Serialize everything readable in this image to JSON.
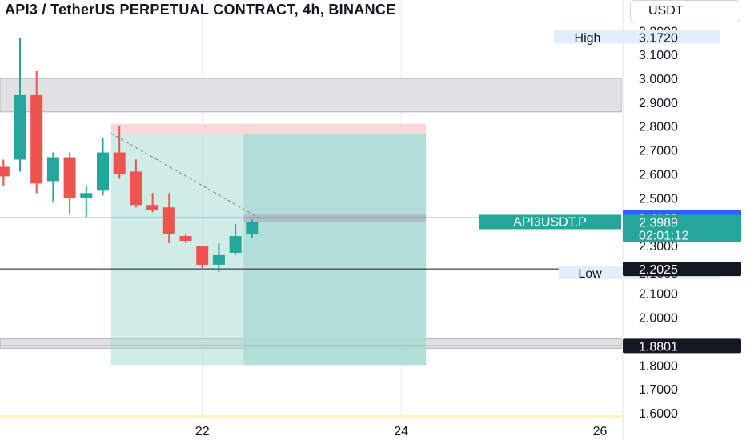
{
  "header": {
    "title": "API3 / TetherUS PERPETUAL CONTRACT, 4h, BINANCE",
    "currency": "USDT"
  },
  "colors": {
    "up": "#26a69a",
    "down": "#ef5350",
    "profit_zone": "#a8dcd3",
    "loss_zone": "#fad0d0",
    "zone_gray": "#e1e1e3",
    "price_tag_green": "#26a69a",
    "price_tag_blue": "#2962ff",
    "price_tag_dark": "#131722"
  },
  "chart_data": {
    "type": "candlestick",
    "symbol": "API3USDT.P",
    "timeframe": "4h",
    "y_axis": {
      "min": 1.58,
      "max": 3.23,
      "ticks": [
        "1.6000",
        "1.7000",
        "1.8000",
        "2.0000",
        "2.1000",
        "2.3000",
        "2.5000",
        "2.6000",
        "2.7000",
        "2.8000",
        "2.9000",
        "3.0000",
        "3.1000",
        "3.2000"
      ]
    },
    "x_axis": {
      "ticks": [
        {
          "label": "22",
          "index": 11
        },
        {
          "label": "24",
          "index": 23
        },
        {
          "label": "26",
          "index": 35
        }
      ]
    },
    "candles": [
      {
        "i": -1,
        "o": 2.63,
        "h": 2.66,
        "l": 2.55,
        "c": 2.59
      },
      {
        "i": 0,
        "o": 2.66,
        "h": 3.17,
        "l": 2.61,
        "c": 2.93
      },
      {
        "i": 1,
        "o": 2.93,
        "h": 3.03,
        "l": 2.52,
        "c": 2.56
      },
      {
        "i": 2,
        "o": 2.57,
        "h": 2.69,
        "l": 2.48,
        "c": 2.67
      },
      {
        "i": 3,
        "o": 2.67,
        "h": 2.69,
        "l": 2.43,
        "c": 2.5
      },
      {
        "i": 4,
        "o": 2.5,
        "h": 2.55,
        "l": 2.42,
        "c": 2.52
      },
      {
        "i": 5,
        "o": 2.53,
        "h": 2.75,
        "l": 2.51,
        "c": 2.69
      },
      {
        "i": 6,
        "o": 2.69,
        "h": 2.8,
        "l": 2.58,
        "c": 2.6
      },
      {
        "i": 7,
        "o": 2.61,
        "h": 2.66,
        "l": 2.46,
        "c": 2.47
      },
      {
        "i": 8,
        "o": 2.47,
        "h": 2.52,
        "l": 2.44,
        "c": 2.45
      },
      {
        "i": 9,
        "o": 2.46,
        "h": 2.52,
        "l": 2.31,
        "c": 2.35
      },
      {
        "i": 10,
        "o": 2.34,
        "h": 2.35,
        "l": 2.31,
        "c": 2.32
      },
      {
        "i": 11,
        "o": 2.3,
        "h": 2.3,
        "l": 2.2,
        "c": 2.22
      },
      {
        "i": 12,
        "o": 2.22,
        "h": 2.31,
        "l": 2.19,
        "c": 2.26
      },
      {
        "i": 13,
        "o": 2.27,
        "h": 2.39,
        "l": 2.26,
        "c": 2.34
      },
      {
        "i": 14,
        "o": 2.35,
        "h": 2.41,
        "l": 2.33,
        "c": 2.4
      }
    ],
    "zones": [
      {
        "name": "upper resistance zone",
        "y_top": 3.0,
        "y_bottom": 2.86
      },
      {
        "name": "lower support zone",
        "y_top": 1.91,
        "y_bottom": 1.87
      }
    ],
    "position_tool": {
      "start_index": 5.5,
      "entry_index": 13.5,
      "end_index": 24.5,
      "stop_top": 2.81,
      "stop_bottom": 2.77,
      "entry_price": 2.41,
      "target_price": 1.8
    },
    "horizontal_lines": [
      {
        "name": "line 2.2025",
        "price": 2.2025
      },
      {
        "name": "line 1.8801",
        "price": 1.8801
      },
      {
        "name": "line 2.4163",
        "price": 2.4163
      },
      {
        "name": "line 2.3989",
        "price": 2.3989
      }
    ],
    "price_tags": [
      {
        "name": "high",
        "label": "High",
        "value": "3.1720",
        "price": 3.172
      },
      {
        "name": "low",
        "label": "Low",
        "value": "2.1863",
        "price": 2.1863
      },
      {
        "name": "blue",
        "value": "2.4163",
        "price": 2.4163
      },
      {
        "name": "last",
        "value": "2.3989",
        "countdown": "02:01:12",
        "price": 2.3989
      },
      {
        "name": "level-2-2025",
        "value": "2.2025",
        "price": 2.2025
      },
      {
        "name": "level-1-8801",
        "value": "1.8801",
        "price": 1.8801
      }
    ],
    "symbol_label": "API3USDT.P"
  }
}
